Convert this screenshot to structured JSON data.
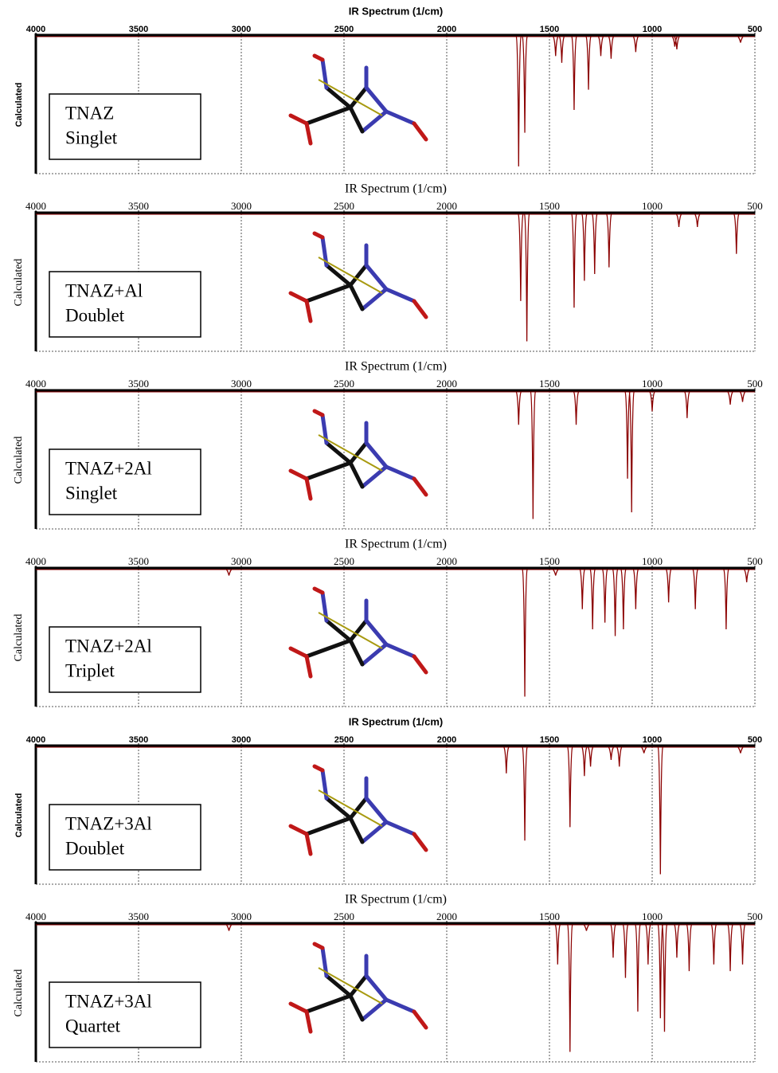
{
  "chart_data": [
    {
      "type": "spectrum",
      "title": "IR Spectrum (1/cm)",
      "y_label": "Calculated",
      "annotation": [
        "TNAZ",
        "Singlet"
      ],
      "xlim": [
        4000,
        500
      ],
      "xticks": [
        4000,
        3500,
        3000,
        2500,
        2000,
        1500,
        1000,
        500
      ],
      "ylim": [
        0,
        1
      ],
      "color": "#8b0000",
      "x": [
        1650,
        1620,
        1470,
        1440,
        1380,
        1310,
        1250,
        1200,
        1080,
        890,
        880,
        570
      ],
      "values": [
        0.97,
        0.72,
        0.15,
        0.2,
        0.55,
        0.4,
        0.15,
        0.17,
        0.12,
        0.08,
        0.1,
        0.05
      ]
    },
    {
      "type": "spectrum",
      "title": "IR Spectrum (1/cm)",
      "y_label": "Calculated",
      "annotation": [
        "TNAZ+Al",
        "Doublet"
      ],
      "xlim": [
        4000,
        500
      ],
      "xticks": [
        4000,
        3500,
        3000,
        2500,
        2000,
        1500,
        1000,
        500
      ],
      "ylim": [
        0,
        1
      ],
      "color": "#8b0000",
      "x": [
        1640,
        1610,
        1380,
        1330,
        1280,
        1210,
        870,
        780,
        590
      ],
      "values": [
        0.65,
        0.95,
        0.7,
        0.5,
        0.45,
        0.4,
        0.1,
        0.1,
        0.3
      ]
    },
    {
      "type": "spectrum",
      "title": "IR Spectrum (1/cm)",
      "y_label": "Calculated",
      "annotation": [
        "TNAZ+2Al",
        "Singlet"
      ],
      "xlim": [
        4000,
        500
      ],
      "xticks": [
        4000,
        3500,
        3000,
        2500,
        2000,
        1500,
        1000,
        500
      ],
      "ylim": [
        0,
        1
      ],
      "color": "#8b0000",
      "x": [
        1650,
        1580,
        1370,
        1120,
        1100,
        1000,
        830,
        620,
        560
      ],
      "values": [
        0.25,
        0.95,
        0.25,
        0.65,
        0.9,
        0.15,
        0.2,
        0.1,
        0.08
      ]
    },
    {
      "type": "spectrum",
      "title": "IR Spectrum (1/cm)",
      "y_label": "Calculated",
      "annotation": [
        "TNAZ+2Al",
        "Triplet"
      ],
      "xlim": [
        4000,
        500
      ],
      "xticks": [
        4000,
        3500,
        3000,
        2500,
        2000,
        1500,
        1000,
        500
      ],
      "ylim": [
        0,
        1
      ],
      "color": "#8b0000",
      "x": [
        3060,
        1620,
        1470,
        1340,
        1290,
        1230,
        1180,
        1140,
        1080,
        920,
        790,
        640,
        540
      ],
      "values": [
        0.05,
        0.95,
        0.05,
        0.3,
        0.45,
        0.4,
        0.5,
        0.45,
        0.3,
        0.25,
        0.3,
        0.45,
        0.1
      ]
    },
    {
      "type": "spectrum",
      "title": "IR Spectrum (1/cm)",
      "y_label": "Calculated",
      "annotation": [
        "TNAZ+3Al",
        "Doublet"
      ],
      "xlim": [
        4000,
        500
      ],
      "xticks": [
        4000,
        3500,
        3000,
        2500,
        2000,
        1500,
        1000,
        500
      ],
      "ylim": [
        0,
        1
      ],
      "color": "#8b0000",
      "x": [
        1710,
        1620,
        1400,
        1330,
        1300,
        1200,
        1160,
        1040,
        960,
        570
      ],
      "values": [
        0.2,
        0.7,
        0.6,
        0.22,
        0.15,
        0.1,
        0.15,
        0.05,
        0.95,
        0.05
      ]
    },
    {
      "type": "spectrum",
      "title": "IR Spectrum (1/cm)",
      "y_label": "Calculated",
      "annotation": [
        "TNAZ+3Al",
        "Quartet"
      ],
      "xlim": [
        4000,
        500
      ],
      "xticks": [
        4000,
        3500,
        3000,
        2500,
        2000,
        1500,
        1000,
        500
      ],
      "ylim": [
        0,
        1
      ],
      "color": "#8b0000",
      "x": [
        3060,
        1460,
        1400,
        1320,
        1190,
        1130,
        1070,
        1020,
        960,
        940,
        880,
        820,
        700,
        620,
        560
      ],
      "values": [
        0.05,
        0.3,
        0.95,
        0.05,
        0.25,
        0.4,
        0.65,
        0.3,
        0.7,
        0.8,
        0.25,
        0.35,
        0.3,
        0.35,
        0.3
      ]
    }
  ]
}
